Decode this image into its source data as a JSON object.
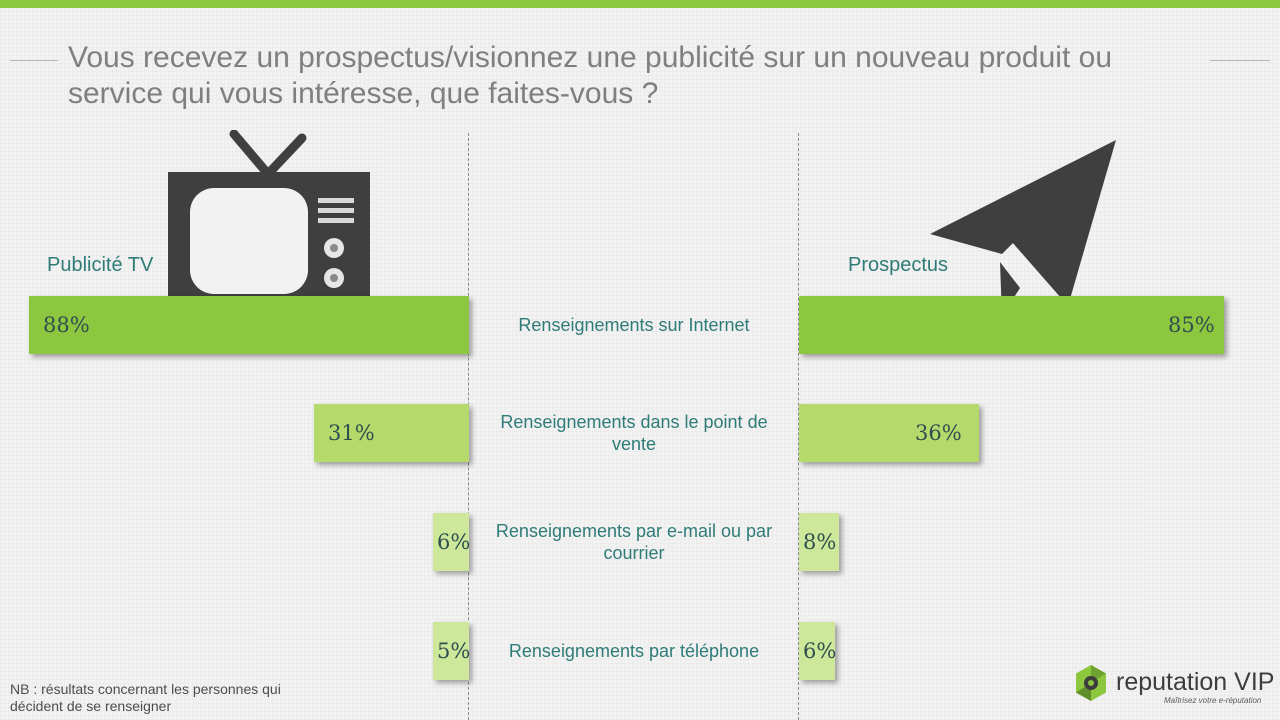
{
  "title": "Vous recevez un prospectus/visionnez une publicité sur un nouveau produit ou service qui vous intéresse, que faites-vous ?",
  "chart_data": {
    "type": "bar",
    "categories": [
      "Renseignements sur Internet",
      "Renseignements dans le point de vente",
      "Renseignements par e-mail ou par courrier",
      "Renseignements par téléphone"
    ],
    "series": [
      {
        "name": "Publicité TV",
        "values": [
          88,
          31,
          6,
          5
        ],
        "labels": [
          "88%",
          "31%",
          "6%",
          "5%"
        ]
      },
      {
        "name": "Prospectus",
        "values": [
          85,
          36,
          8,
          6
        ],
        "labels": [
          "85%",
          "36%",
          "8%",
          "6%"
        ]
      }
    ],
    "layout": "butterfly",
    "unit": "%",
    "colors": {
      "large": "#8dc63f",
      "small": "#b5d96a",
      "smallest": "#cde89a"
    }
  },
  "footnote": "NB : résultats concernant les personnes qui décident de se renseigner",
  "logo": {
    "word": "reputation",
    "vip": "VIP",
    "tagline": "Maîtrisez votre e-réputation"
  },
  "icons": {
    "tv": "television-icon",
    "prospectus": "paper-plane-icon"
  },
  "colors": {
    "accent": "#8dc63f",
    "label": "#2e7b78",
    "title": "#7f7f7f"
  }
}
